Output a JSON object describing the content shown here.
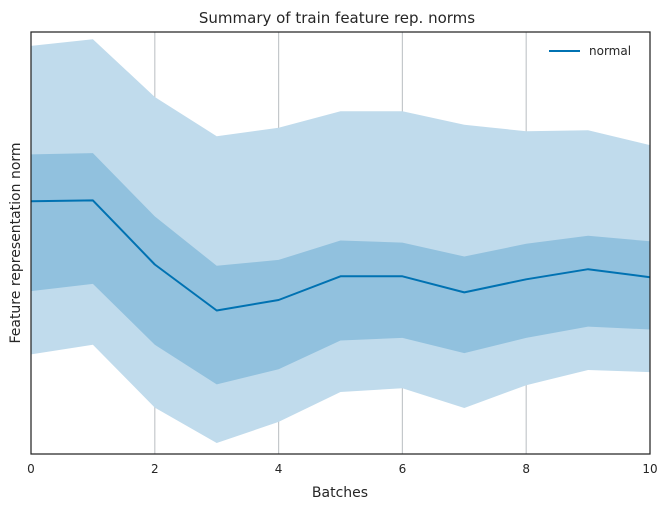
{
  "chart_data": {
    "type": "area",
    "title": "Summary of train feature rep. norms",
    "xlabel": "Batches",
    "ylabel": "Feature representation norm",
    "xlim": [
      0,
      10
    ],
    "ylim": [
      0,
      100
    ],
    "xticks": [
      0,
      2,
      4,
      6,
      8,
      10
    ],
    "x_gridlines": [
      2,
      4,
      6,
      8
    ],
    "grid": "vertical only",
    "legend": {
      "position": "top-right",
      "entries": [
        "normal"
      ]
    },
    "colors": {
      "line": "#0072b2",
      "inner_band": "#91c1de",
      "outer_band": "#c0dbec",
      "grid": "#c4c8cb",
      "axes": "#262626"
    },
    "x": [
      0,
      1,
      2,
      3,
      4,
      5,
      6,
      7,
      8,
      9,
      10
    ],
    "series": [
      {
        "name": "normal",
        "mean": [
          59.9,
          60.1,
          44.9,
          34.0,
          36.5,
          42.1,
          42.1,
          38.3,
          41.4,
          43.8,
          41.9
        ],
        "inner_upper": [
          71.0,
          71.3,
          56.3,
          44.6,
          46.0,
          50.6,
          50.1,
          46.8,
          49.8,
          51.7,
          50.4
        ],
        "inner_lower": [
          38.6,
          40.3,
          25.9,
          16.5,
          20.1,
          26.9,
          27.5,
          23.9,
          27.5,
          30.2,
          29.5
        ],
        "outer_upper": [
          96.7,
          98.3,
          84.6,
          75.3,
          77.3,
          81.2,
          81.2,
          78.0,
          76.5,
          76.7,
          73.2
        ],
        "outer_lower": [
          23.6,
          25.9,
          11.0,
          2.6,
          7.6,
          14.7,
          15.6,
          10.9,
          16.3,
          19.9,
          19.4
        ]
      }
    ]
  }
}
